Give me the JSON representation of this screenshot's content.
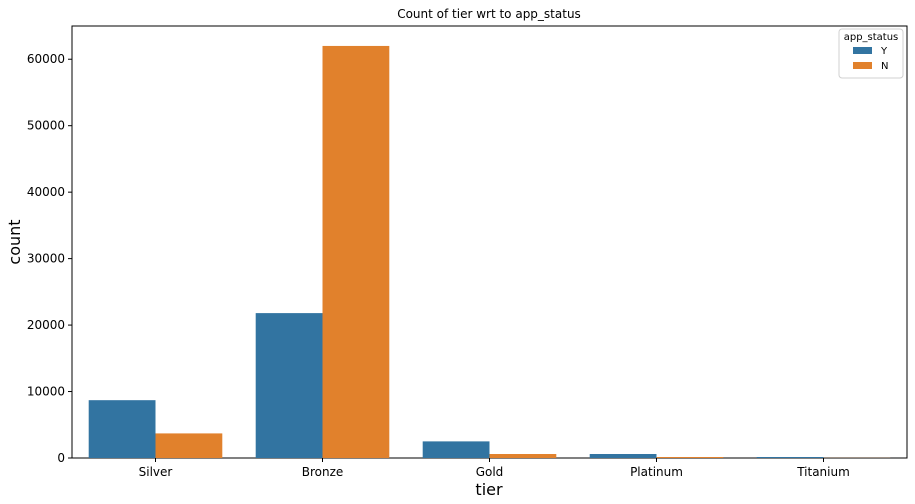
{
  "chart_data": {
    "type": "bar",
    "title": "Count of tier wrt to app_status",
    "xlabel": "tier",
    "ylabel": "count",
    "categories": [
      "Silver",
      "Bronze",
      "Gold",
      "Platinum",
      "Titanium"
    ],
    "series": [
      {
        "name": "Y",
        "color": "#3274a1",
        "values": [
          8700,
          21800,
          2500,
          600,
          150
        ]
      },
      {
        "name": "N",
        "color": "#e1812c",
        "values": [
          3700,
          62000,
          600,
          150,
          20
        ]
      }
    ],
    "ylim": [
      0,
      65000
    ],
    "yticks": [
      0,
      10000,
      20000,
      30000,
      40000,
      50000,
      60000
    ],
    "grid": false,
    "legend": {
      "title": "app_status",
      "placement": "top-right"
    }
  }
}
